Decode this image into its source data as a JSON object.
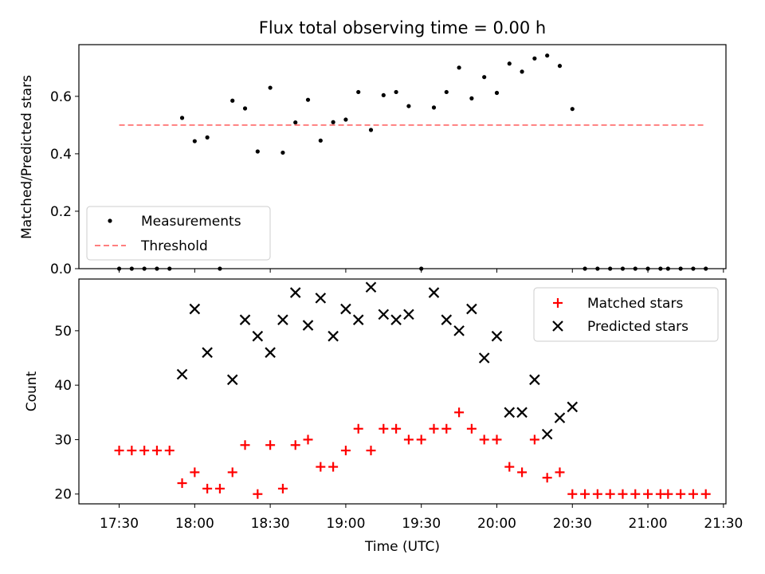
{
  "figure": {
    "title": "Flux total observing time = 0.00 h",
    "xlabel": "Time (UTC)",
    "xticks": [
      "17:30",
      "18:00",
      "18:30",
      "19:00",
      "19:30",
      "20:00",
      "20:30",
      "21:00",
      "21:30"
    ]
  },
  "chart_data": [
    {
      "type": "scatter",
      "ylabel": "Matched/Predicted stars",
      "xlim": [
        "17:14",
        "21:31"
      ],
      "ylim": [
        0,
        0.78
      ],
      "yticks": [
        "0.0",
        "0.2",
        "0.4",
        "0.6"
      ],
      "yticks_values": [
        0,
        0.2,
        0.4,
        0.6
      ],
      "legend_placement": "lower-left",
      "series": [
        {
          "name": "Measurements",
          "marker": "dot",
          "color": "#000000",
          "x": [
            "17:30",
            "17:35",
            "17:40",
            "17:45",
            "17:50",
            "17:55",
            "18:00",
            "18:05",
            "18:10",
            "18:15",
            "18:20",
            "18:25",
            "18:30",
            "18:35",
            "18:40",
            "18:45",
            "18:50",
            "18:55",
            "19:00",
            "19:05",
            "19:10",
            "19:15",
            "19:20",
            "19:25",
            "19:30",
            "19:35",
            "19:40",
            "19:45",
            "19:50",
            "19:55",
            "20:00",
            "20:05",
            "20:10",
            "20:15",
            "20:20",
            "20:25",
            "20:30",
            "20:35",
            "20:40",
            "20:45",
            "20:50",
            "20:55",
            "21:00",
            "21:05",
            "21:08",
            "21:13",
            "21:18",
            "21:23"
          ],
          "y": [
            0,
            0,
            0,
            0,
            0,
            0.525,
            0.444,
            0.457,
            0,
            0.585,
            0.558,
            0.408,
            0.63,
            0.404,
            0.509,
            0.588,
            0.446,
            0.51,
            0.519,
            0.615,
            0.483,
            0.604,
            0.615,
            0.566,
            0,
            0.561,
            0.615,
            0.7,
            0.593,
            0.667,
            0.612,
            0.714,
            0.686,
            0.732,
            0.742,
            0.706,
            0.556,
            0,
            0,
            0,
            0,
            0,
            0,
            0,
            0,
            0,
            0,
            0
          ]
        },
        {
          "name": "Threshold",
          "line": "dashed",
          "color": "#ff7f7f",
          "x": [
            "17:30",
            "21:23"
          ],
          "y": [
            0.5,
            0.5
          ]
        }
      ]
    },
    {
      "type": "scatter",
      "ylabel": "Count",
      "xlim": [
        "17:14",
        "21:31"
      ],
      "ylim": [
        18.2,
        59.5
      ],
      "yticks": [
        "20",
        "30",
        "40",
        "50"
      ],
      "yticks_values": [
        20,
        30,
        40,
        50
      ],
      "legend_placement": "upper-right",
      "series": [
        {
          "name": "Matched stars",
          "marker": "plus",
          "color": "#ff0000",
          "x": [
            "17:30",
            "17:35",
            "17:40",
            "17:45",
            "17:50",
            "17:55",
            "18:00",
            "18:05",
            "18:10",
            "18:15",
            "18:20",
            "18:25",
            "18:30",
            "18:35",
            "18:40",
            "18:45",
            "18:50",
            "18:55",
            "19:00",
            "19:05",
            "19:10",
            "19:15",
            "19:20",
            "19:25",
            "19:30",
            "19:35",
            "19:40",
            "19:45",
            "19:50",
            "19:55",
            "20:00",
            "20:05",
            "20:10",
            "20:15",
            "20:20",
            "20:25",
            "20:30",
            "20:35",
            "20:40",
            "20:45",
            "20:50",
            "20:55",
            "21:00",
            "21:05",
            "21:08",
            "21:13",
            "21:18",
            "21:23"
          ],
          "y": [
            28,
            28,
            28,
            28,
            28,
            22,
            24,
            21,
            21,
            24,
            29,
            20,
            29,
            21,
            29,
            30,
            25,
            25,
            28,
            32,
            28,
            32,
            32,
            30,
            30,
            32,
            32,
            35,
            32,
            30,
            30,
            25,
            24,
            30,
            23,
            24,
            20,
            20,
            20,
            20,
            20,
            20,
            20,
            20,
            20,
            20,
            20,
            20
          ]
        },
        {
          "name": "Predicted stars",
          "marker": "x",
          "color": "#000000",
          "x": [
            "17:55",
            "18:00",
            "18:05",
            "18:15",
            "18:20",
            "18:25",
            "18:30",
            "18:35",
            "18:40",
            "18:45",
            "18:50",
            "18:55",
            "19:00",
            "19:05",
            "19:10",
            "19:15",
            "19:20",
            "19:25",
            "19:35",
            "19:40",
            "19:45",
            "19:50",
            "19:55",
            "20:00",
            "20:05",
            "20:10",
            "20:15",
            "20:20",
            "20:25",
            "20:30"
          ],
          "y": [
            42,
            54,
            46,
            41,
            52,
            49,
            46,
            52,
            57,
            51,
            56,
            49,
            54,
            52,
            58,
            53,
            52,
            53,
            57,
            52,
            50,
            54,
            45,
            49,
            35,
            35,
            41,
            31,
            34,
            36
          ]
        }
      ]
    }
  ]
}
